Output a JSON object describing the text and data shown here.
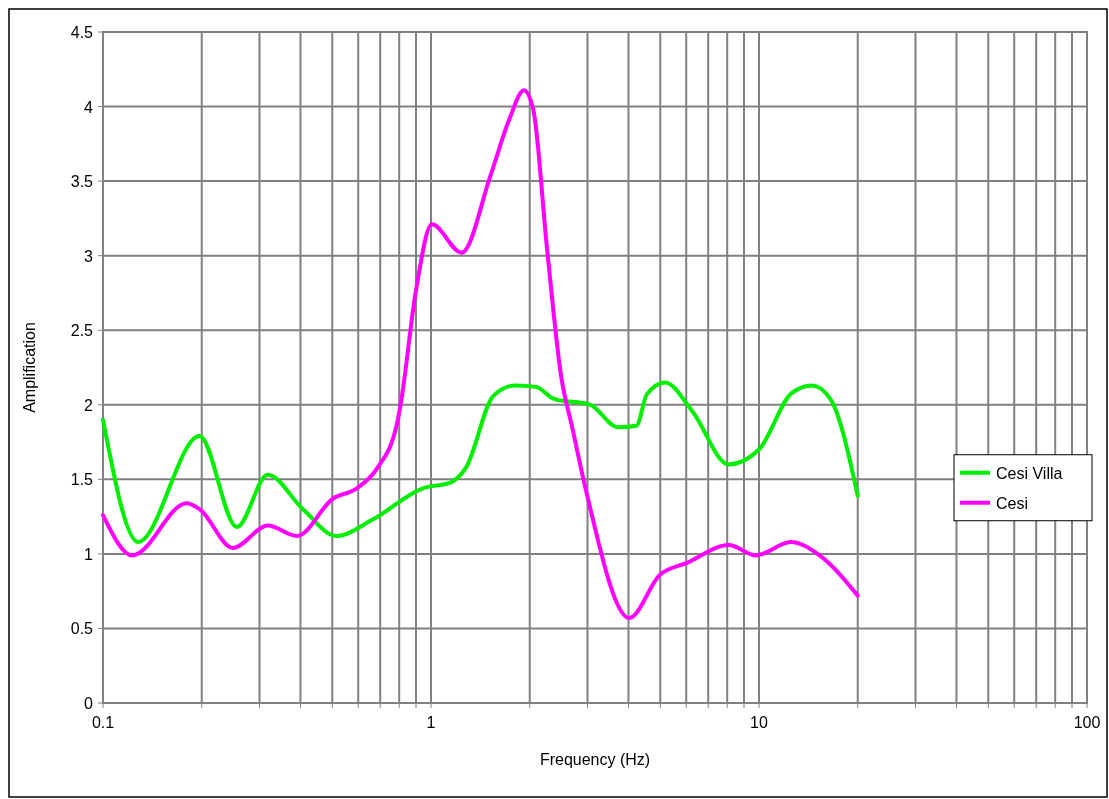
{
  "chart_data": {
    "type": "line",
    "xlabel": "Frequency (Hz)",
    "ylabel": "Amplification",
    "log": "x",
    "grid": true,
    "legend": "right",
    "marker": "none",
    "line_style": "solid",
    "xlim": [
      0.1,
      100
    ],
    "ylim": [
      0,
      4.5
    ],
    "xticks": [
      0.1,
      {
        "value": 0.2,
        "label": null
      },
      {
        "value": 0.3,
        "label": null
      },
      {
        "value": 0.4,
        "label": null
      },
      {
        "value": 0.5,
        "label": null
      },
      {
        "value": 0.6,
        "label": null
      },
      {
        "value": 0.7,
        "label": null
      },
      {
        "value": 0.8,
        "label": null
      },
      {
        "value": 0.9,
        "label": null
      },
      1,
      {
        "value": 2,
        "label": null
      },
      {
        "value": 3,
        "label": null
      },
      {
        "value": 4,
        "label": null
      },
      {
        "value": 5,
        "label": null
      },
      {
        "value": 6,
        "label": null
      },
      {
        "value": 7,
        "label": null
      },
      {
        "value": 8,
        "label": null
      },
      {
        "value": 9,
        "label": null
      },
      10,
      {
        "value": 20,
        "label": null
      },
      {
        "value": 30,
        "label": null
      },
      {
        "value": 40,
        "label": null
      },
      {
        "value": 50,
        "label": null
      },
      {
        "value": 60,
        "label": null
      },
      {
        "value": 70,
        "label": null
      },
      {
        "value": 80,
        "label": null
      },
      {
        "value": 90,
        "label": null
      },
      100
    ],
    "yticks": [
      0,
      0.5,
      1,
      1.5,
      2,
      2.5,
      3,
      3.5,
      4,
      4.5
    ],
    "series": [
      {
        "name": "Cesi Villa",
        "color": "#00ee00",
        "x": [
          0.1,
          0.128,
          0.197,
          0.256,
          0.318,
          0.407,
          0.515,
          0.664,
          0.944,
          1.15,
          1.28,
          1.55,
          1.81,
          2.09,
          2.37,
          3.06,
          3.71,
          4.23,
          4.55,
          5.17,
          6.29,
          8.08,
          10.0,
          12.6,
          14.5,
          16.5,
          20.0
        ],
        "values": [
          1.9,
          1.08,
          1.79,
          1.18,
          1.53,
          1.3,
          1.12,
          1.23,
          1.44,
          1.48,
          1.58,
          2.06,
          2.13,
          2.12,
          2.04,
          2.0,
          1.85,
          1.86,
          2.07,
          2.15,
          1.95,
          1.6,
          1.7,
          2.08,
          2.13,
          2.04,
          1.39
        ]
      },
      {
        "name": "Cesi",
        "color": "#ff00ff",
        "x": [
          0.1,
          0.123,
          0.18,
          0.197,
          0.249,
          0.318,
          0.39,
          0.502,
          0.594,
          0.683,
          0.787,
          0.809,
          0.899,
          1.006,
          1.24,
          1.52,
          1.73,
          1.92,
          2.05,
          2.26,
          2.49,
          2.7,
          2.98,
          4.02,
          4.99,
          6.03,
          8.08,
          9.8,
          12.5,
          15.3,
          20.0
        ],
        "values": [
          1.26,
          0.99,
          1.34,
          1.3,
          1.04,
          1.19,
          1.12,
          1.37,
          1.44,
          1.57,
          1.87,
          2.01,
          2.76,
          3.21,
          3.02,
          3.54,
          3.91,
          4.11,
          3.98,
          3.04,
          2.2,
          1.84,
          1.41,
          0.57,
          0.86,
          0.94,
          1.06,
          0.99,
          1.08,
          0.99,
          0.72
        ]
      }
    ]
  }
}
